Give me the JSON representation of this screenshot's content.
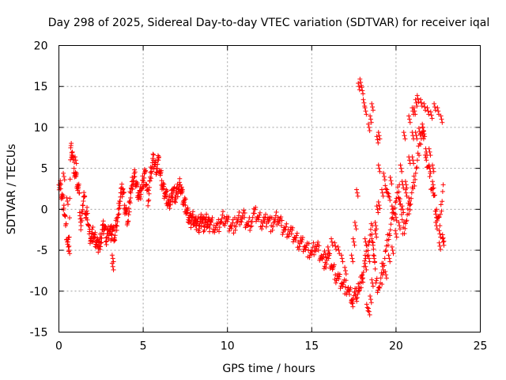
{
  "chart_data": {
    "type": "scatter",
    "title": "Day 298 of 2025, Sidereal Day-to-day VTEC variation (SDTVAR) for receiver iqal",
    "xlabel": "GPS time / hours",
    "ylabel": "SDTVAR / TECUs",
    "xlim": [
      0,
      25
    ],
    "ylim": [
      -15,
      20
    ],
    "xticks": [
      0,
      5,
      10,
      15,
      20,
      25
    ],
    "yticks": [
      -15,
      -10,
      -5,
      0,
      5,
      10,
      15,
      20
    ],
    "xtick_labels": [
      "0",
      "5",
      "10",
      "15",
      "20",
      "25"
    ],
    "ytick_labels": [
      "-15",
      "-10",
      "-5",
      "0",
      "5",
      "10",
      "15",
      "20"
    ],
    "grid": true,
    "marker": "+",
    "color": "#ff0000",
    "series": [
      {
        "name": "SDTVAR iqal",
        "x": [
          0.0,
          0.1,
          0.2,
          0.3,
          0.4,
          0.5,
          0.6,
          0.7,
          0.8,
          0.9,
          1.0,
          1.1,
          1.2,
          1.3,
          1.4,
          1.5,
          1.6,
          1.7,
          1.8,
          1.9,
          2.0,
          2.1,
          2.2,
          2.3,
          2.4,
          2.5,
          2.6,
          2.7,
          2.8,
          2.9,
          3.0,
          3.1,
          3.2,
          3.3,
          3.4,
          3.5,
          3.6,
          3.7,
          3.8,
          3.9,
          4.0,
          4.1,
          4.2,
          4.3,
          4.4,
          4.5,
          4.6,
          4.7,
          4.8,
          4.9,
          5.0,
          5.1,
          5.2,
          5.3,
          5.4,
          5.5,
          5.6,
          5.7,
          5.8,
          5.9,
          6.0,
          6.1,
          6.2,
          6.3,
          6.4,
          6.5,
          6.6,
          6.7,
          6.8,
          6.9,
          7.0,
          7.1,
          7.2,
          7.3,
          7.4,
          7.5,
          7.6,
          7.7,
          7.8,
          7.9,
          8.0,
          8.1,
          8.2,
          8.3,
          8.4,
          8.5,
          8.6,
          8.7,
          8.8,
          8.9,
          9.0,
          9.2,
          9.4,
          9.6,
          9.8,
          10.0,
          10.2,
          10.4,
          10.6,
          10.8,
          11.0,
          11.2,
          11.4,
          11.6,
          11.8,
          12.0,
          12.2,
          12.4,
          12.6,
          12.8,
          13.0,
          13.2,
          13.4,
          13.6,
          13.8,
          14.0,
          14.2,
          14.4,
          14.6,
          14.8,
          15.0,
          15.2,
          15.4,
          15.6,
          15.8,
          16.0,
          16.2,
          16.4,
          16.6,
          16.8,
          17.0,
          17.2,
          17.4,
          17.6,
          17.8,
          18.0,
          18.2,
          18.4,
          18.6,
          18.8,
          19.0,
          19.2,
          19.4,
          19.6,
          19.8,
          20.0,
          20.2,
          20.4,
          20.6,
          20.8,
          21.0,
          21.2,
          21.4,
          21.6,
          21.8,
          22.0,
          22.2,
          22.4,
          22.6,
          22.8
        ],
        "y": [
          3.0,
          2.5,
          1.5,
          0.5,
          -2.0,
          -4.0,
          -4.5,
          7.5,
          7.0,
          5.0,
          4.0,
          3.0,
          2.0,
          -2.5,
          0.5,
          1.5,
          -1.0,
          -0.5,
          -3.0,
          -3.5,
          -3.0,
          -3.5,
          -4.0,
          -4.5,
          -4.0,
          -3.5,
          -2.5,
          -2.0,
          -3.5,
          -3.0,
          -2.5,
          -3.0,
          -2.5,
          -3.5,
          -2.0,
          -1.0,
          1.0,
          2.0,
          2.5,
          0.5,
          -0.5,
          -1.5,
          1.0,
          2.5,
          3.5,
          4.0,
          3.0,
          2.0,
          1.5,
          2.5,
          3.5,
          4.5,
          3.0,
          1.0,
          3.5,
          5.0,
          6.0,
          5.5,
          5.0,
          6.0,
          4.5,
          3.5,
          2.5,
          2.0,
          1.5,
          0.5,
          1.0,
          1.5,
          2.5,
          1.5,
          2.0,
          2.5,
          3.0,
          2.0,
          1.0,
          0.5,
          -0.5,
          -1.0,
          -1.5,
          -1.0,
          -1.0,
          -2.0,
          -1.5,
          -2.0,
          -1.5,
          -1.0,
          -2.0,
          -1.5,
          -1.5,
          -2.0,
          -1.5,
          -2.0,
          -2.5,
          -1.5,
          -1.0,
          -1.5,
          -2.0,
          -2.0,
          -1.5,
          -1.0,
          -1.0,
          -2.0,
          -1.5,
          -0.5,
          -1.0,
          -1.5,
          -1.5,
          -1.0,
          -2.0,
          -1.5,
          -1.0,
          -2.0,
          -2.5,
          -2.5,
          -3.0,
          -3.5,
          -4.0,
          -4.0,
          -4.5,
          -5.0,
          -5.5,
          -4.5,
          -5.0,
          -6.0,
          -6.5,
          -6.0,
          -7.0,
          -8.0,
          -8.5,
          -9.0,
          -9.5,
          -10.0,
          -11.0,
          -10.5,
          -10.0,
          -8.0,
          -6.0,
          -4.0,
          -2.0,
          -9.0,
          -9.5,
          -8.0,
          -5.0,
          -3.0,
          -1.0,
          1.0,
          3.0,
          -3.0,
          -1.5,
          0.5,
          2.5,
          5.0,
          8.0,
          10.0,
          6.0,
          4.0,
          2.0,
          0.0,
          -2.0,
          3.0
        ],
        "extra_x": [
          0.3,
          0.5,
          0.6,
          0.8,
          1.0,
          2.4,
          3.2,
          3.2,
          17.4,
          17.5,
          17.6,
          17.7,
          17.8,
          17.9,
          18.0,
          18.1,
          18.2,
          18.3,
          18.4,
          18.5,
          18.6,
          18.7,
          18.8,
          18.9,
          19.0,
          19.2,
          19.4,
          19.6,
          19.8,
          20.0,
          20.2,
          20.4,
          20.6,
          20.8,
          21.0,
          21.1,
          21.3,
          21.5,
          21.7,
          21.9,
          22.1,
          22.3,
          22.5,
          22.7,
          18.9,
          19.0,
          19.3,
          19.5,
          19.7,
          20.3,
          20.5,
          20.8,
          21.0,
          21.2,
          21.6,
          22.0,
          22.2,
          22.4,
          22.6,
          22.8,
          17.0,
          16.8,
          16.6,
          16.4,
          16.2,
          16.0,
          15.8,
          17.2,
          17.4,
          17.6,
          17.8,
          18.0,
          18.2,
          18.4,
          18.6,
          18.8,
          19.0,
          19.2,
          19.4,
          19.6,
          19.8,
          20.0,
          20.2,
          20.4,
          20.6,
          20.8,
          21.0,
          21.2,
          21.4,
          21.6,
          21.8,
          22.0,
          22.2,
          22.4,
          22.6,
          22.8,
          18.2,
          18.4,
          18.5,
          18.6
        ],
        "extra_y": [
          4.0,
          1.0,
          -5.0,
          6.5,
          6.0,
          -4.5,
          -6.0,
          -7.0,
          -6.0,
          -4.0,
          -2.0,
          2.0,
          15.0,
          15.5,
          14.5,
          13.0,
          12.0,
          -12.0,
          -12.5,
          -11.0,
          -9.0,
          -6.0,
          -3.0,
          0.0,
          5.0,
          -7.0,
          -8.0,
          -6.0,
          -5.0,
          -3.0,
          -2.0,
          0.0,
          3.0,
          6.0,
          9.0,
          12.0,
          13.5,
          13.0,
          12.5,
          12.0,
          11.5,
          12.5,
          12.0,
          11.0,
          8.5,
          9.0,
          4.0,
          2.0,
          3.5,
          5.0,
          9.0,
          11.0,
          12.0,
          13.0,
          9.0,
          7.0,
          5.0,
          -1.0,
          -3.0,
          -4.0,
          -7.5,
          -6.0,
          -5.0,
          -4.5,
          -4.0,
          -5.0,
          -5.5,
          -10.0,
          -11.5,
          -10.5,
          -9.5,
          -8.5,
          -7.0,
          -6.0,
          -4.0,
          -2.0,
          0.5,
          2.0,
          2.5,
          1.5,
          0.0,
          -1.0,
          1.0,
          3.0,
          2.0,
          1.0,
          6.0,
          9.0,
          9.5,
          10.0,
          7.0,
          5.0,
          3.0,
          -2.0,
          -4.5,
          -3.5,
          -4.0,
          10.0,
          11.0,
          12.5,
          13.0
        ]
      }
    ]
  }
}
